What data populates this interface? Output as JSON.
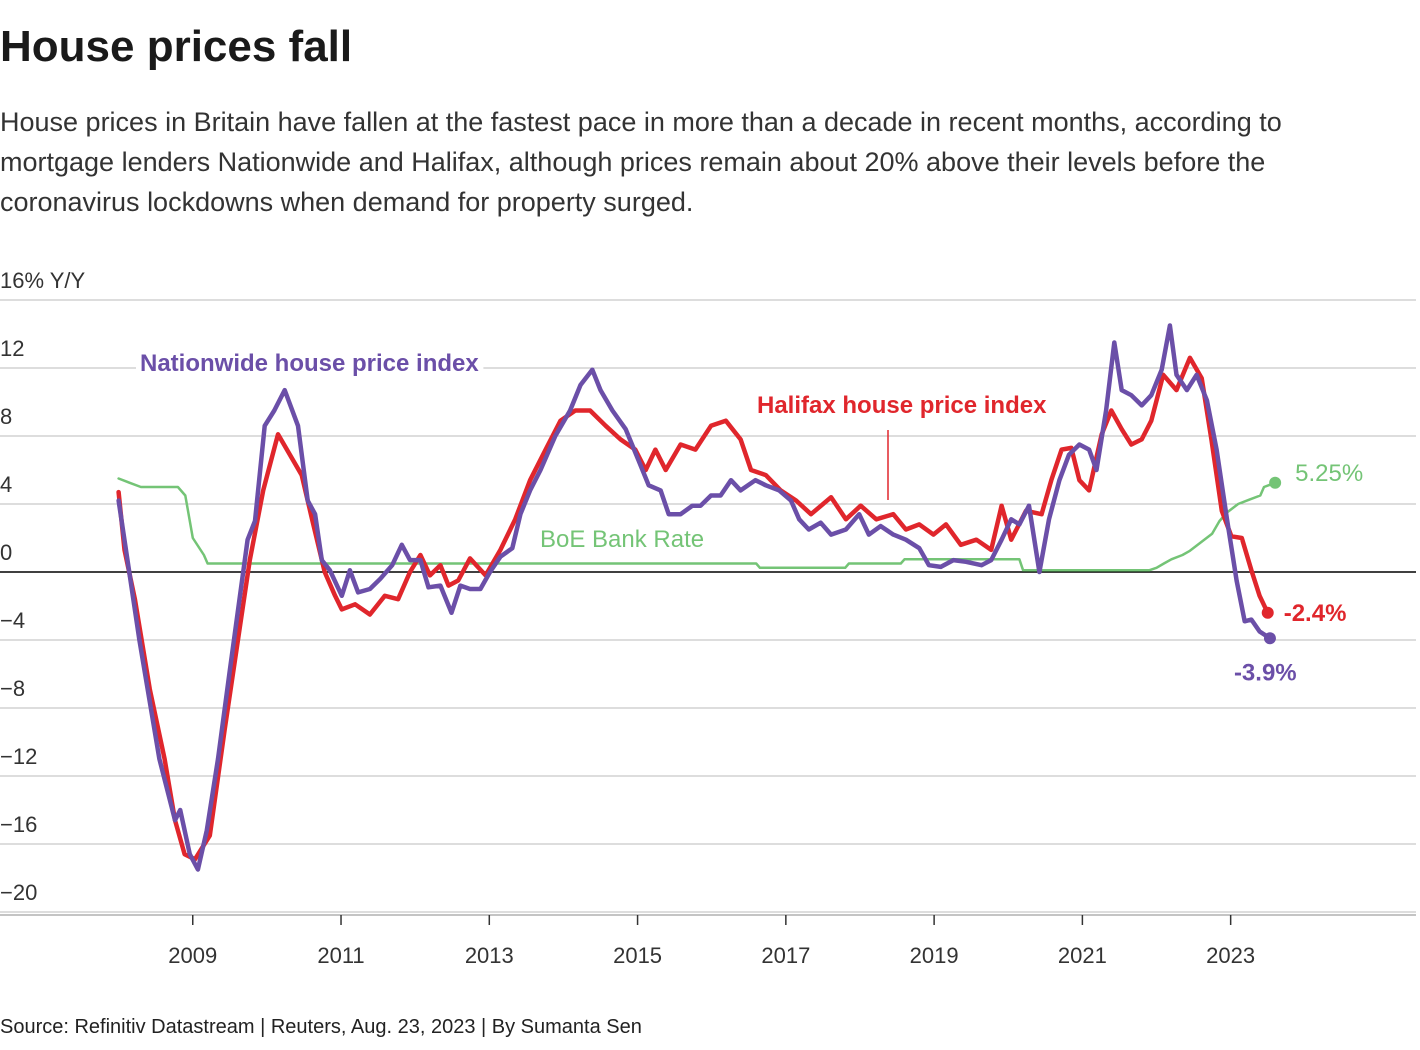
{
  "chart_data": {
    "type": "line",
    "title": "House prices fall",
    "subtitle": "House prices in Britain have fallen at the fastest pace in more than a decade in recent months, according to mortgage lenders Nationwide and Halifax, although prices remain about 20% above their levels before the coronavirus lockdowns when demand for property surged.",
    "source": "Source: Refinitiv Datastream | Reuters, Aug. 23, 2023 | By Sumanta Sen",
    "xlim": [
      2006.4,
      2025.5
    ],
    "xticks": [
      2009,
      2011,
      2013,
      2015,
      2017,
      2019,
      2021,
      2023
    ],
    "ylim": [
      -20,
      16
    ],
    "yticks": [
      {
        "value": -20,
        "label": "−20"
      },
      {
        "value": -16,
        "label": "−16"
      },
      {
        "value": -12,
        "label": "−12"
      },
      {
        "value": -8,
        "label": "−8"
      },
      {
        "value": -4,
        "label": "−4"
      },
      0,
      4,
      8,
      12,
      {
        "value": 16,
        "label": "16% Y/Y"
      }
    ],
    "grid": true,
    "series": [
      {
        "name": "BoE Bank Rate",
        "color": "#74c476",
        "x": [
          2008.0,
          2008.15,
          2008.3,
          2008.8,
          2008.9,
          2009.0,
          2009.15,
          2009.2,
          2016.6,
          2016.65,
          2017.8,
          2017.85,
          2018.55,
          2018.6,
          2020.15,
          2020.2,
          2021.9,
          2022.0,
          2022.1,
          2022.2,
          2022.35,
          2022.45,
          2022.6,
          2022.75,
          2022.85,
          2022.95,
          2023.1,
          2023.25,
          2023.4,
          2023.45,
          2023.6
        ],
        "values": [
          5.5,
          5.25,
          5,
          5,
          4.5,
          2,
          1,
          0.5,
          0.5,
          0.25,
          0.25,
          0.5,
          0.5,
          0.75,
          0.75,
          0.1,
          0.1,
          0.25,
          0.5,
          0.75,
          1,
          1.25,
          1.75,
          2.25,
          3,
          3.5,
          4,
          4.25,
          4.5,
          5,
          5.25
        ],
        "value_labels": [
          null,
          null,
          null,
          null,
          null,
          null,
          null,
          null,
          null,
          null,
          null,
          null,
          null,
          null,
          null,
          null,
          null,
          null,
          null,
          null,
          null,
          null,
          null,
          null,
          null,
          null,
          null,
          null,
          null,
          null,
          "5.25%"
        ]
      },
      {
        "name": "Halifax house price index",
        "color": "#e0262c",
        "x": [
          2008.0,
          2008.08,
          2008.22,
          2008.42,
          2008.62,
          2008.76,
          2008.89,
          2009.03,
          2009.23,
          2009.43,
          2009.64,
          2009.77,
          2009.95,
          2010.15,
          2010.31,
          2010.47,
          2010.61,
          2010.78,
          2010.92,
          2011.01,
          2011.19,
          2011.39,
          2011.59,
          2011.77,
          2011.93,
          2012.07,
          2012.2,
          2012.34,
          2012.45,
          2012.58,
          2012.74,
          2012.95,
          2013.15,
          2013.35,
          2013.55,
          2013.76,
          2013.96,
          2014.16,
          2014.36,
          2014.57,
          2014.77,
          2014.97,
          2015.11,
          2015.24,
          2015.38,
          2015.58,
          2015.78,
          2015.99,
          2016.19,
          2016.39,
          2016.53,
          2016.73,
          2016.93,
          2017.14,
          2017.34,
          2017.61,
          2017.81,
          2018.01,
          2018.22,
          2018.45,
          2018.62,
          2018.8,
          2018.99,
          2019.16,
          2019.36,
          2019.57,
          2019.77,
          2019.91,
          2020.04,
          2020.24,
          2020.45,
          2020.58,
          2020.72,
          2020.85,
          2020.96,
          2021.09,
          2021.26,
          2021.39,
          2021.53,
          2021.66,
          2021.8,
          2021.93,
          2022.09,
          2022.27,
          2022.45,
          2022.61,
          2022.74,
          2022.88,
          2023.01,
          2023.15,
          2023.28,
          2023.39,
          2023.5
        ],
        "values": [
          4.7,
          1.3,
          -1.6,
          -6.9,
          -11,
          -14.6,
          -16.6,
          -16.9,
          -15.5,
          -9.3,
          -3.1,
          0.7,
          4.8,
          8.1,
          6.9,
          5.7,
          3.1,
          0,
          -1.4,
          -2.2,
          -1.9,
          -2.5,
          -1.4,
          -1.6,
          0,
          1,
          -0.2,
          0.4,
          -0.8,
          -0.5,
          0.8,
          -0.2,
          1.3,
          3.1,
          5.4,
          7.2,
          8.9,
          9.5,
          9.5,
          8.6,
          7.8,
          7.2,
          6,
          7.2,
          6,
          7.5,
          7.2,
          8.6,
          8.9,
          7.8,
          6,
          5.7,
          4.8,
          4.2,
          3.4,
          4.4,
          3.1,
          3.9,
          3.1,
          3.4,
          2.5,
          2.8,
          2.2,
          2.8,
          1.6,
          1.9,
          1.3,
          3.9,
          1.9,
          3.6,
          3.4,
          5.4,
          7.2,
          7.3,
          5.4,
          4.8,
          8.1,
          9.5,
          8.4,
          7.5,
          7.8,
          8.9,
          11.6,
          10.7,
          12.6,
          11.4,
          7.8,
          3.6,
          2.1,
          2,
          0.1,
          -1.4,
          -2.4
        ],
        "value_labels": [
          null,
          null,
          null,
          null,
          null,
          null,
          null,
          null,
          null,
          null,
          null,
          null,
          null,
          null,
          null,
          null,
          null,
          null,
          null,
          null,
          null,
          null,
          null,
          null,
          null,
          null,
          null,
          null,
          null,
          null,
          null,
          null,
          null,
          null,
          null,
          null,
          null,
          null,
          null,
          null,
          null,
          null,
          null,
          null,
          null,
          null,
          null,
          null,
          null,
          null,
          null,
          null,
          null,
          null,
          null,
          null,
          null,
          null,
          null,
          null,
          null,
          null,
          null,
          null,
          null,
          null,
          null,
          null,
          null,
          null,
          null,
          null,
          null,
          null,
          null,
          null,
          null,
          null,
          null,
          null,
          null,
          null,
          null,
          null,
          null,
          null,
          null,
          null,
          null,
          null,
          null,
          null,
          "-2.4%"
        ]
      },
      {
        "name": "Nationwide house price index",
        "color": "#6b4fa8",
        "x": [
          2008.0,
          2008.28,
          2008.55,
          2008.76,
          2008.83,
          2008.96,
          2009.07,
          2009.19,
          2009.34,
          2009.5,
          2009.74,
          2009.84,
          2009.97,
          2010.1,
          2010.24,
          2010.42,
          2010.55,
          2010.65,
          2010.74,
          2010.85,
          2011.01,
          2011.12,
          2011.23,
          2011.39,
          2011.53,
          2011.69,
          2011.82,
          2011.93,
          2012.07,
          2012.18,
          2012.34,
          2012.49,
          2012.61,
          2012.74,
          2012.88,
          2013.01,
          2013.15,
          2013.31,
          2013.42,
          2013.55,
          2013.69,
          2013.89,
          2014.09,
          2014.23,
          2014.39,
          2014.5,
          2014.66,
          2014.84,
          2015.01,
          2015.15,
          2015.31,
          2015.42,
          2015.58,
          2015.74,
          2015.85,
          2015.99,
          2016.12,
          2016.26,
          2016.39,
          2016.59,
          2016.73,
          2016.91,
          2017.07,
          2017.18,
          2017.31,
          2017.47,
          2017.61,
          2017.81,
          2017.99,
          2018.12,
          2018.28,
          2018.45,
          2018.62,
          2018.8,
          2018.93,
          2019.09,
          2019.26,
          2019.43,
          2019.64,
          2019.77,
          2019.91,
          2020.04,
          2020.15,
          2020.28,
          2020.42,
          2020.55,
          2020.69,
          2020.82,
          2020.96,
          2021.09,
          2021.19,
          2021.32,
          2021.43,
          2021.53,
          2021.66,
          2021.8,
          2021.93,
          2022.07,
          2022.18,
          2022.27,
          2022.41,
          2022.54,
          2022.68,
          2022.81,
          2022.95,
          2023.08,
          2023.19,
          2023.28,
          2023.39,
          2023.53
        ],
        "values": [
          4.2,
          -4,
          -11,
          -14.6,
          -14,
          -16.6,
          -17.5,
          -15.2,
          -11,
          -5.8,
          1.9,
          3,
          8.6,
          9.5,
          10.7,
          8.6,
          4.2,
          3.4,
          0.7,
          0.1,
          -1.4,
          0.1,
          -1.2,
          -1,
          -0.4,
          0.4,
          1.6,
          0.7,
          0.7,
          -0.9,
          -0.8,
          -2.4,
          -0.8,
          -1,
          -1,
          0,
          0.9,
          1.4,
          3.4,
          4.8,
          6,
          8,
          9.5,
          11,
          11.9,
          10.7,
          9.5,
          8.4,
          6.6,
          5.1,
          4.8,
          3.4,
          3.4,
          3.9,
          3.9,
          4.5,
          4.5,
          5.4,
          4.8,
          5.4,
          5.1,
          4.8,
          4.2,
          3.1,
          2.5,
          2.9,
          2.2,
          2.5,
          3.4,
          2.2,
          2.7,
          2.2,
          1.9,
          1.4,
          0.4,
          0.3,
          0.7,
          0.6,
          0.4,
          0.7,
          1.9,
          3.1,
          2.8,
          3.9,
          0,
          3.1,
          5.4,
          6.9,
          7.5,
          7.2,
          6,
          9.5,
          13.5,
          10.7,
          10.4,
          9.8,
          10.4,
          11.9,
          14.5,
          11.6,
          10.7,
          11.6,
          10.1,
          7.2,
          3.1,
          -0.5,
          -2.9,
          -2.8,
          -3.5,
          -3.9
        ],
        "value_labels": [
          null,
          null,
          null,
          null,
          null,
          null,
          null,
          null,
          null,
          null,
          null,
          null,
          null,
          null,
          null,
          null,
          null,
          null,
          null,
          null,
          null,
          null,
          null,
          null,
          null,
          null,
          null,
          null,
          null,
          null,
          null,
          null,
          null,
          null,
          null,
          null,
          null,
          null,
          null,
          null,
          null,
          null,
          null,
          null,
          null,
          null,
          null,
          null,
          null,
          null,
          null,
          null,
          null,
          null,
          null,
          null,
          null,
          null,
          null,
          null,
          null,
          null,
          null,
          null,
          null,
          null,
          null,
          null,
          null,
          null,
          null,
          null,
          null,
          null,
          null,
          null,
          null,
          null,
          null,
          null,
          null,
          null,
          null,
          null,
          null,
          null,
          null,
          null,
          null,
          null,
          null,
          null,
          null,
          null,
          null,
          null,
          null,
          null,
          null,
          null,
          null,
          null,
          null,
          null,
          null,
          null,
          null,
          null,
          null,
          "-3.9%"
        ]
      }
    ]
  }
}
